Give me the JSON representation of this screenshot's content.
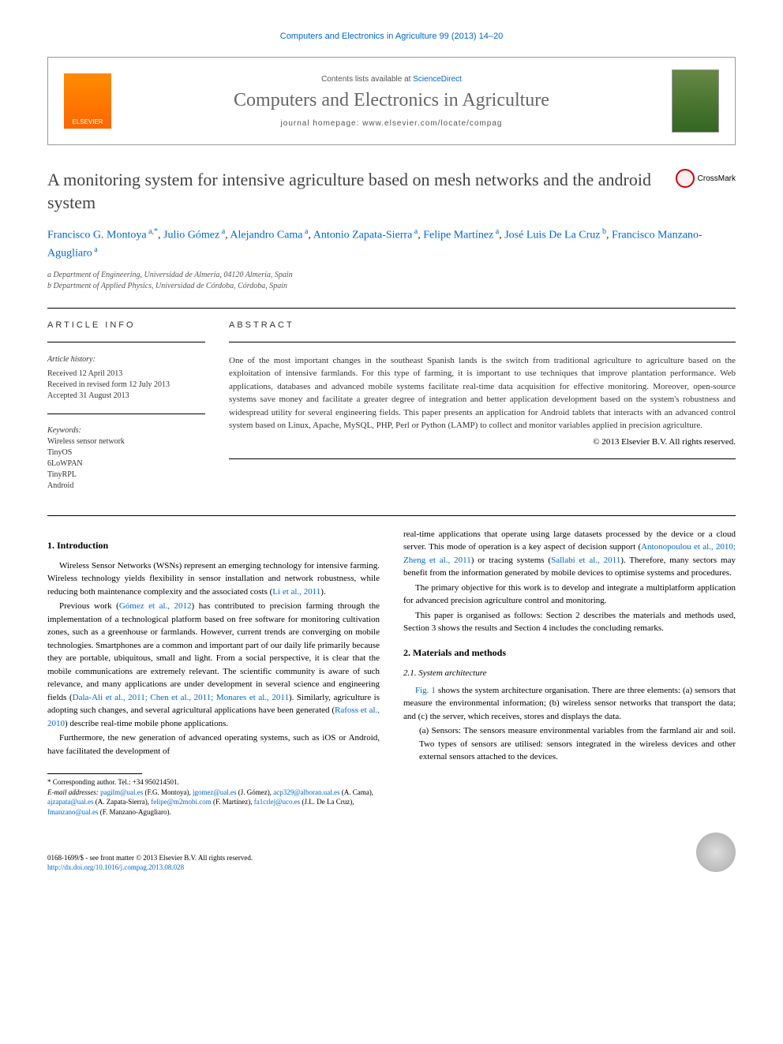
{
  "colors": {
    "link": "#0066cc",
    "text": "#333333",
    "title_gray": "#666666",
    "background": "#ffffff"
  },
  "typography": {
    "body_family": "Georgia, Times New Roman, serif",
    "sans_family": "Arial, sans-serif",
    "title_size_pt": 22,
    "journal_title_size_pt": 24,
    "body_size_pt": 11,
    "footnote_size_pt": 9
  },
  "journal_ref": "Computers and Electronics in Agriculture 99 (2013) 14–20",
  "header": {
    "elsevier_label": "ELSEVIER",
    "contents_text": "Contents lists available at ",
    "contents_link": "ScienceDirect",
    "journal_title": "Computers and Electronics in Agriculture",
    "homepage_text": "journal homepage: www.elsevier.com/locate/compag"
  },
  "crossmark_label": "CrossMark",
  "article_title": "A monitoring system for intensive agriculture based on mesh networks and the android system",
  "authors_html": "Francisco G. Montoya <sup>a,*</sup>, Julio Gómez <sup>a</sup>, Alejandro Cama <sup>a</sup>, Antonio Zapata-Sierra <sup>a</sup>, Felipe Martínez <sup>a</sup>, José Luis De La Cruz <sup>b</sup>, Francisco Manzano-Agugliaro <sup>a</sup>",
  "affiliations": [
    "a Department of Engineering, Universidad de Almería, 04120 Almería, Spain",
    "b Department of Applied Physics, Universidad de Córdoba, Córdoba, Spain"
  ],
  "info": {
    "label": "ARTICLE INFO",
    "history_label": "Article history:",
    "history": [
      "Received 12 April 2013",
      "Received in revised form 12 July 2013",
      "Accepted 31 August 2013"
    ],
    "keywords_label": "Keywords:",
    "keywords": [
      "Wireless sensor network",
      "TinyOS",
      "6LoWPAN",
      "TinyRPL",
      "Android"
    ]
  },
  "abstract": {
    "label": "ABSTRACT",
    "text": "One of the most important changes in the southeast Spanish lands is the switch from traditional agriculture to agriculture based on the exploitation of intensive farmlands. For this type of farming, it is important to use techniques that improve plantation performance. Web applications, databases and advanced mobile systems facilitate real-time data acquisition for effective monitoring. Moreover, open-source systems save money and facilitate a greater degree of integration and better application development based on the system's robustness and widespread utility for several engineering fields. This paper presents an application for Android tablets that interacts with an advanced control system based on Linux, Apache, MySQL, PHP, Perl or Python (LAMP) to collect and monitor variables applied in precision agriculture.",
    "copyright": "© 2013 Elsevier B.V. All rights reserved."
  },
  "sections": {
    "s1_heading": "1. Introduction",
    "s1_p1": "Wireless Sensor Networks (WSNs) represent an emerging technology for intensive farming. Wireless technology yields flexibility in sensor installation and network robustness, while reducing both maintenance complexity and the associated costs (Li et al., 2011).",
    "s1_p2": "Previous work (Gómez et al., 2012) has contributed to precision farming through the implementation of a technological platform based on free software for monitoring cultivation zones, such as a greenhouse or farmlands. However, current trends are converging on mobile technologies. Smartphones are a common and important part of our daily life primarily because they are portable, ubiquitous, small and light. From a social perspective, it is clear that the mobile communications are extremely relevant. The scientific community is aware of such relevance, and many applications are under development in several science and engineering fields (Dala-Ali et al., 2011; Chen et al., 2011; Monares et al., 2011). Similarly, agriculture is adopting such changes, and several agricultural applications have been generated (Rafoss et al., 2010) describe real-time mobile phone applications.",
    "s1_p3": "Furthermore, the new generation of advanced operating systems, such as iOS or Android, have facilitated the development of",
    "s1_p4": "real-time applications that operate using large datasets processed by the device or a cloud server. This mode of operation is a key aspect of decision support (Antonopoulou et al., 2010; Zheng et al., 2011) or tracing systems (Sallabi et al., 2011). Therefore, many sectors may benefit from the information generated by mobile devices to optimise systems and procedures.",
    "s1_p5": "The primary objective for this work is to develop and integrate a multiplatform application for advanced precision agriculture control and monitoring.",
    "s1_p6": "This paper is organised as follows: Section 2 describes the materials and methods used, Section 3 shows the results and Section 4 includes the concluding remarks.",
    "s2_heading": "2. Materials and methods",
    "s2_1_heading": "2.1. System architecture",
    "s2_p1": "Fig. 1 shows the system architecture organisation. There are three elements: (a) sensors that measure the environmental information; (b) wireless sensor networks that transport the data; and (c) the server, which receives, stores and displays the data.",
    "s2_list_a": "(a) Sensors: The sensors measure environmental variables from the farmland air and soil. Two types of sensors are utilised: sensors integrated in the wireless devices and other external sensors attached to the devices."
  },
  "footnotes": {
    "corr": "* Corresponding author. Tel.: +34 950214501.",
    "emails_label": "E-mail addresses:",
    "emails": " pagilm@ual.es (F.G. Montoya), jgomez@ual.es (J. Gómez), acp329@alboran.ual.es (A. Cama), ajzapata@ual.es (A. Zapata-Sierra), felipe@m2mobi.com (F. Martínez), fa1crlej@uco.es (J.L. De La Cruz), fmanzano@ual.es (F. Manzano-Agugliaro)."
  },
  "footer": {
    "issn_line": "0168-1699/$ - see front matter © 2013 Elsevier B.V. All rights reserved.",
    "doi": "http://dx.doi.org/10.1016/j.compag.2013.08.028"
  }
}
